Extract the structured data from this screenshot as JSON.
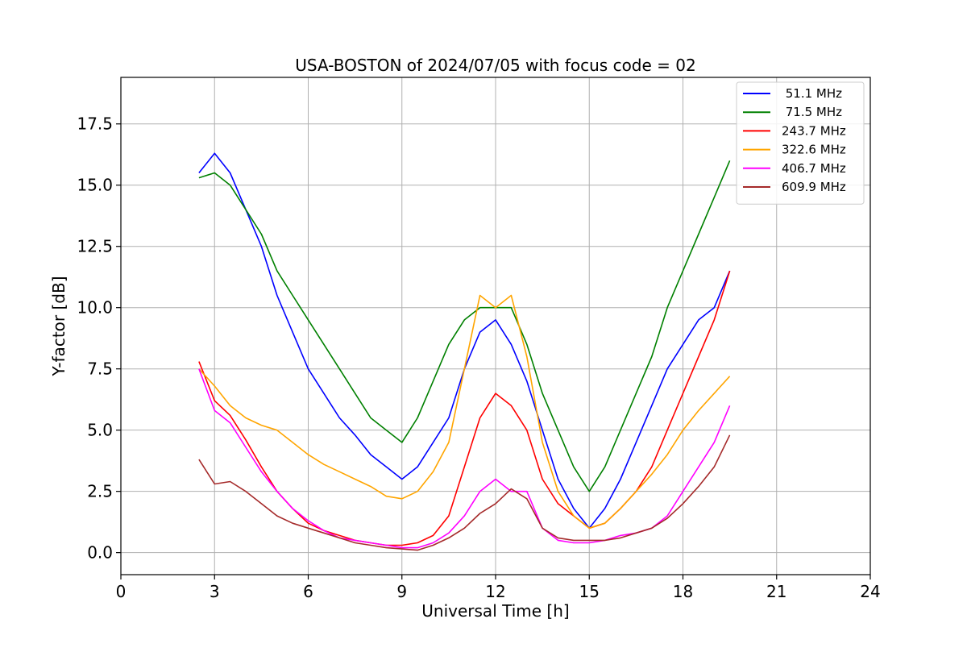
{
  "chart_data": {
    "type": "line",
    "title": "USA-BOSTON of 2024/07/05 with focus code = 02",
    "xlabel": "Universal Time [h]",
    "ylabel": "Y-factor [dB]",
    "xlim": [
      0,
      24
    ],
    "ylim": [
      -0.9,
      19.4
    ],
    "xticks": [
      0,
      3,
      6,
      9,
      12,
      15,
      18,
      21,
      24
    ],
    "xtick_labels": [
      "0",
      "3",
      "6",
      "9",
      "12",
      "15",
      "18",
      "21",
      "24"
    ],
    "yticks": [
      0.0,
      2.5,
      5.0,
      7.5,
      10.0,
      12.5,
      15.0,
      17.5
    ],
    "ytick_labels": [
      "0.0",
      "2.5",
      "5.0",
      "7.5",
      "10.0",
      "12.5",
      "15.0",
      "17.5"
    ],
    "grid": true,
    "legend_position": "top-right",
    "x": [
      2.5,
      3.0,
      3.5,
      4.0,
      4.5,
      5.0,
      5.5,
      6.0,
      6.5,
      7.0,
      7.5,
      8.0,
      8.5,
      9.0,
      9.5,
      10.0,
      10.5,
      11.0,
      11.5,
      12.0,
      12.5,
      13.0,
      13.5,
      14.0,
      14.5,
      15.0,
      15.5,
      16.0,
      16.5,
      17.0,
      17.5,
      18.0,
      18.5,
      19.0,
      19.5
    ],
    "series": [
      {
        "name": " 51.1 MHz",
        "color": "#0000ff",
        "values": [
          15.5,
          16.3,
          15.5,
          14.0,
          12.5,
          10.5,
          9.0,
          7.5,
          6.5,
          5.5,
          4.8,
          4.0,
          3.5,
          3.0,
          3.5,
          4.5,
          5.5,
          7.5,
          9.0,
          9.5,
          8.5,
          7.0,
          5.0,
          3.0,
          1.8,
          1.0,
          1.8,
          3.0,
          4.5,
          6.0,
          7.5,
          8.5,
          9.5,
          10.0,
          11.5
        ]
      },
      {
        "name": " 71.5 MHz",
        "color": "#008000",
        "values": [
          15.3,
          15.5,
          15.0,
          14.0,
          13.0,
          11.5,
          10.5,
          9.5,
          8.5,
          7.5,
          6.5,
          5.5,
          5.0,
          4.5,
          5.5,
          7.0,
          8.5,
          9.5,
          10.0,
          10.0,
          10.0,
          8.5,
          6.5,
          5.0,
          3.5,
          2.5,
          3.5,
          5.0,
          6.5,
          8.0,
          10.0,
          11.5,
          13.0,
          14.5,
          16.0
        ]
      },
      {
        "name": "243.7 MHz",
        "color": "#ff0000",
        "values": [
          7.8,
          6.2,
          5.6,
          4.6,
          3.5,
          2.5,
          1.8,
          1.2,
          0.9,
          0.7,
          0.5,
          0.4,
          0.3,
          0.3,
          0.4,
          0.7,
          1.5,
          3.5,
          5.5,
          6.5,
          6.0,
          5.0,
          3.0,
          2.0,
          1.5,
          1.0,
          1.2,
          1.8,
          2.5,
          3.5,
          5.0,
          6.5,
          8.0,
          9.5,
          11.5
        ]
      },
      {
        "name": "322.6 MHz",
        "color": "#ffa500",
        "values": [
          7.5,
          6.8,
          6.0,
          5.5,
          5.2,
          5.0,
          4.5,
          4.0,
          3.6,
          3.3,
          3.0,
          2.7,
          2.3,
          2.2,
          2.5,
          3.3,
          4.5,
          7.5,
          10.5,
          10.0,
          10.5,
          8.0,
          4.5,
          2.5,
          1.5,
          1.0,
          1.2,
          1.8,
          2.5,
          3.2,
          4.0,
          5.0,
          5.8,
          6.5,
          7.2
        ]
      },
      {
        "name": "406.7 MHz",
        "color": "#ff00ff",
        "values": [
          7.5,
          5.8,
          5.3,
          4.3,
          3.3,
          2.5,
          1.8,
          1.3,
          0.9,
          0.6,
          0.5,
          0.4,
          0.3,
          0.2,
          0.2,
          0.4,
          0.8,
          1.5,
          2.5,
          3.0,
          2.5,
          2.5,
          1.0,
          0.5,
          0.4,
          0.4,
          0.5,
          0.7,
          0.8,
          1.0,
          1.5,
          2.5,
          3.5,
          4.5,
          6.0
        ]
      },
      {
        "name": "609.9 MHz",
        "color": "#a52a2a",
        "values": [
          3.8,
          2.8,
          2.9,
          2.5,
          2.0,
          1.5,
          1.2,
          1.0,
          0.8,
          0.6,
          0.4,
          0.3,
          0.2,
          0.15,
          0.1,
          0.3,
          0.6,
          1.0,
          1.6,
          2.0,
          2.6,
          2.2,
          1.0,
          0.6,
          0.5,
          0.5,
          0.5,
          0.6,
          0.8,
          1.0,
          1.4,
          2.0,
          2.7,
          3.5,
          4.8
        ]
      }
    ]
  }
}
